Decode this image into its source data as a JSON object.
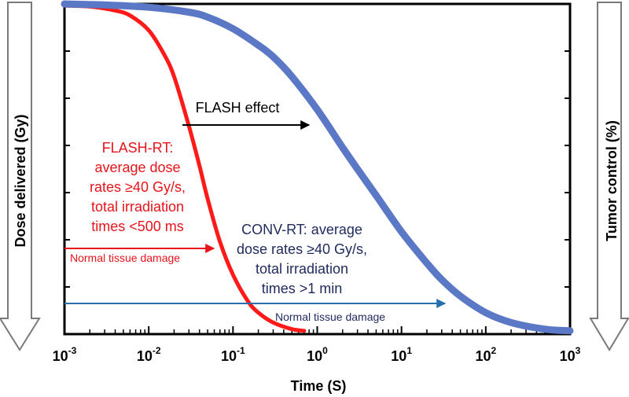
{
  "chart_data": {
    "type": "line",
    "xlabel": "Time (S)",
    "ylabel_left": "Dose delivered (Gy)",
    "ylabel_right": "Tumor control (%)",
    "x_scale": "log",
    "xlim": [
      0.001,
      1000
    ],
    "ylim": [
      0,
      100
    ],
    "grid": false,
    "x_tick_labels": [
      {
        "base": "10",
        "exp": "-3",
        "value": 0.001
      },
      {
        "base": "10",
        "exp": "-2",
        "value": 0.01
      },
      {
        "base": "10",
        "exp": "-1",
        "value": 0.1
      },
      {
        "base": "10",
        "exp": "0",
        "value": 1
      },
      {
        "base": "10",
        "exp": "1",
        "value": 10
      },
      {
        "base": "10",
        "exp": "2",
        "value": 100
      },
      {
        "base": "10",
        "exp": "3",
        "value": 1000
      }
    ],
    "y_minor_ticks": 6,
    "series": [
      {
        "color": "#ff1a1a",
        "x": [
          0.001,
          0.002,
          0.004,
          0.006,
          0.01,
          0.015,
          0.02,
          0.03,
          0.04,
          0.05,
          0.07,
          0.1,
          0.15,
          0.2,
          0.3,
          0.5,
          0.7
        ],
        "y": [
          99.5,
          99.2,
          98,
          96.5,
          92,
          85,
          78,
          63,
          51,
          41,
          28,
          18,
          10,
          6.5,
          3.5,
          1.5,
          1
        ]
      },
      {
        "color": "#5a78c5",
        "x": [
          0.001,
          0.003,
          0.01,
          0.03,
          0.05,
          0.1,
          0.2,
          0.3,
          0.5,
          1,
          2,
          3,
          5,
          10,
          20,
          30,
          50,
          100,
          200,
          500,
          1000
        ],
        "y": [
          100,
          99.7,
          99,
          97.5,
          96,
          92.5,
          87.5,
          84,
          78,
          68,
          56.5,
          50,
          42,
          31,
          21.5,
          16.5,
          11.5,
          6.5,
          3.5,
          1.5,
          1
        ]
      }
    ],
    "annotations": {
      "flash_effect": "FLASH effect",
      "flash_rt": [
        "FLASH-RT:",
        "average dose",
        "rates ≥40 Gy/s,",
        "total irradiation",
        "times <500 ms"
      ],
      "conv_rt": [
        "CONV-RT: average",
        "dose rates ≥40 Gy/s,",
        "total irradiation",
        "times >1 min"
      ],
      "normal_damage_red": "Normal tissue damage",
      "normal_damage_blue": "Normal tissue damage"
    },
    "colors": {
      "flash": "#e8141b",
      "conv_text": "#1f2a5c",
      "arrow_blue": "#2a6fad",
      "arrow_black": "#000000",
      "big_arrow_fill": "#ffffff",
      "big_arrow_stroke": "#7a7a7a"
    }
  }
}
